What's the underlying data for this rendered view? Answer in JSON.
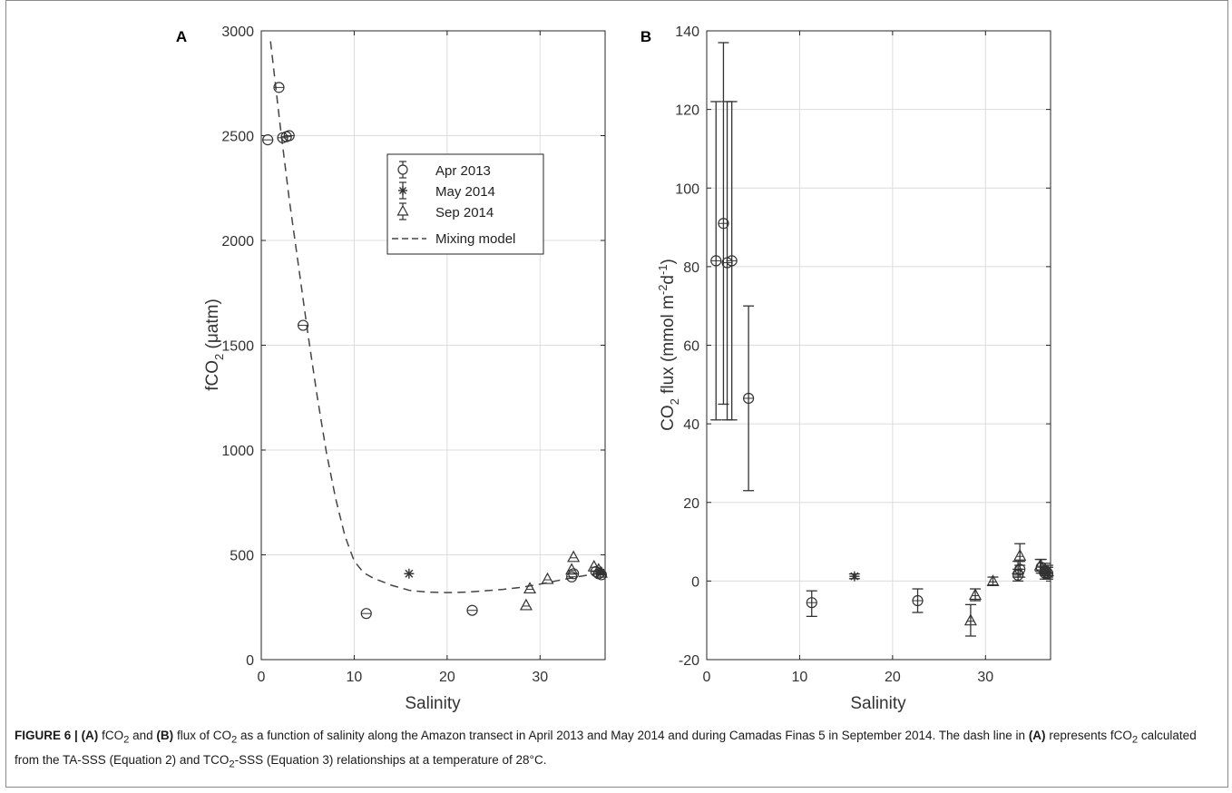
{
  "caption": {
    "label": "FIGURE 6 |",
    "part_a": "(A)",
    "text1": "fCO",
    "sub2": "2",
    "text2": "and",
    "part_b": "(B)",
    "text3": "flux of CO",
    "text4": "as a function of salinity along the Amazon transect in April 2013 and May 2014 and during Camadas Finas 5 in September 2014. The dash line in",
    "part_a2": "(A)",
    "text5": "represents fCO",
    "text6": "calculated from the TA-SSS (Equation 2) and TCO",
    "text7": "-SSS (Equation 3) relationships at a temperature of 28°C."
  },
  "chart_data": [
    {
      "type": "scatter",
      "panel_label": "A",
      "xlabel": "Salinity",
      "ylabel": "fCO",
      "ylabel_sub": "2",
      "ylabel_unit": "(μatm)",
      "xlim": [
        0,
        37
      ],
      "ylim": [
        0,
        3000
      ],
      "xticks": [
        0,
        10,
        20,
        30
      ],
      "yticks": [
        0,
        500,
        1000,
        1500,
        2000,
        2500,
        3000
      ],
      "grid": true,
      "legend_position": "upper-center",
      "legend": [
        {
          "name": "Apr 2013",
          "marker": "circle"
        },
        {
          "name": "May 2014",
          "marker": "asterisk"
        },
        {
          "name": "Sep 2014",
          "marker": "triangle"
        },
        {
          "name": "Mixing model",
          "marker": "dashed-line"
        }
      ],
      "series": [
        {
          "name": "Apr 2013",
          "marker": "circle",
          "points": [
            [
              0.7,
              2480
            ],
            [
              1.9,
              2730
            ],
            [
              2.3,
              2490
            ],
            [
              2.7,
              2495
            ],
            [
              3.0,
              2500
            ],
            [
              4.5,
              1595
            ],
            [
              11.3,
              220
            ],
            [
              22.7,
              235
            ],
            [
              33.4,
              395
            ],
            [
              33.6,
              410
            ],
            [
              36.0,
              420
            ],
            [
              36.3,
              410
            ],
            [
              36.6,
              405
            ]
          ]
        },
        {
          "name": "May 2014",
          "marker": "asterisk",
          "points": [
            [
              15.9,
              410
            ],
            [
              36.5,
              415
            ]
          ]
        },
        {
          "name": "Sep 2014",
          "marker": "triangle",
          "points": [
            [
              28.5,
              260
            ],
            [
              28.9,
              340
            ],
            [
              30.8,
              385
            ],
            [
              33.4,
              430
            ],
            [
              33.6,
              490
            ],
            [
              35.8,
              445
            ],
            [
              36.3,
              430
            ],
            [
              36.6,
              415
            ]
          ]
        },
        {
          "name": "Mixing model",
          "marker": "dashed-line",
          "points": [
            [
              1.0,
              2950
            ],
            [
              2.0,
              2560
            ],
            [
              3.0,
              2200
            ],
            [
              4.0,
              1880
            ],
            [
              5.0,
              1560
            ],
            [
              6.0,
              1260
            ],
            [
              7.0,
              990
            ],
            [
              8.0,
              770
            ],
            [
              9.0,
              590
            ],
            [
              10.0,
              470
            ],
            [
              11.0,
              415
            ],
            [
              12.0,
              390
            ],
            [
              14.0,
              355
            ],
            [
              16.0,
              330
            ],
            [
              18.0,
              322
            ],
            [
              20.0,
              320
            ],
            [
              22.0,
              322
            ],
            [
              24.0,
              328
            ],
            [
              26.0,
              335
            ],
            [
              28.0,
              345
            ],
            [
              30.0,
              360
            ],
            [
              32.0,
              378
            ],
            [
              34.0,
              395
            ],
            [
              36.0,
              410
            ],
            [
              37.0,
              418
            ]
          ]
        }
      ]
    },
    {
      "type": "scatter",
      "panel_label": "B",
      "xlabel": "Salinity",
      "ylabel": "CO",
      "ylabel_sub": "2",
      "ylabel_unit": "flux (mmol m",
      "ylabel_sup1": "-2",
      "ylabel_unit2": "d",
      "ylabel_sup2": "-1",
      "ylabel_close": ")",
      "xlim": [
        0,
        37
      ],
      "ylim": [
        -20,
        140
      ],
      "xticks": [
        0,
        10,
        20,
        30
      ],
      "yticks": [
        -20,
        0,
        20,
        40,
        60,
        80,
        100,
        120,
        140
      ],
      "grid": true,
      "series": [
        {
          "name": "Apr 2013",
          "marker": "circle",
          "points": [
            [
              1.0,
              81.5,
              41,
              122
            ],
            [
              1.8,
              91,
              45,
              137
            ],
            [
              2.2,
              81,
              41,
              122
            ],
            [
              2.7,
              81.5,
              41,
              122
            ],
            [
              4.5,
              46.5,
              23,
              70
            ],
            [
              11.3,
              -5.5,
              -9,
              -2.5
            ],
            [
              22.7,
              -5,
              -8,
              -2
            ],
            [
              33.5,
              1.5,
              0,
              3
            ],
            [
              33.7,
              3,
              1,
              5
            ],
            [
              36.0,
              3.5,
              2,
              5.5
            ],
            [
              36.4,
              2,
              0.5,
              3.5
            ],
            [
              36.7,
              2,
              0.5,
              3.5
            ]
          ]
        },
        {
          "name": "May 2014",
          "marker": "asterisk",
          "points": [
            [
              15.9,
              1.2,
              0.6,
              1.8
            ],
            [
              36.5,
              2.5,
              1.5,
              3.5
            ]
          ]
        },
        {
          "name": "Sep 2014",
          "marker": "triangle",
          "points": [
            [
              28.4,
              -10,
              -14,
              -6
            ],
            [
              28.9,
              -3.5,
              -5,
              -2
            ],
            [
              30.8,
              0,
              -1,
              1
            ],
            [
              33.5,
              3,
              1,
              5
            ],
            [
              33.7,
              6.5,
              4,
              9.5
            ],
            [
              35.9,
              4,
              2.5,
              5.5
            ],
            [
              36.4,
              3,
              1.5,
              4.5
            ],
            [
              36.7,
              2.5,
              1,
              4
            ]
          ]
        }
      ]
    }
  ]
}
